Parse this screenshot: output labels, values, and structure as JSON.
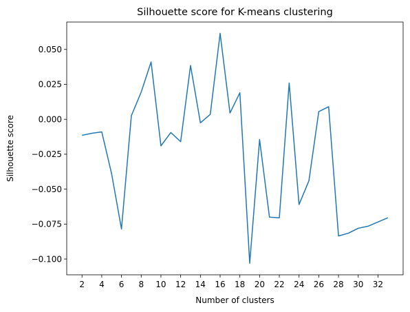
{
  "chart_data": {
    "type": "line",
    "title": "Silhouette score for K-means clustering",
    "xlabel": "Number of clusters",
    "ylabel": "Silhouette score",
    "xlim": [
      0.45,
      34.55
    ],
    "ylim": [
      -0.1113,
      0.0696
    ],
    "grid": false,
    "legend": "none",
    "x_ticks": [
      2,
      4,
      6,
      8,
      10,
      12,
      14,
      16,
      18,
      20,
      22,
      24,
      26,
      28,
      30,
      32
    ],
    "x_tick_labels": [
      "2",
      "4",
      "6",
      "8",
      "10",
      "12",
      "14",
      "16",
      "18",
      "20",
      "22",
      "24",
      "26",
      "28",
      "30",
      "32"
    ],
    "y_ticks": [
      -0.1,
      -0.075,
      -0.05,
      -0.025,
      0.0,
      0.025,
      0.05
    ],
    "y_tick_labels": [
      "−0.100",
      "−0.075",
      "−0.050",
      "−0.025",
      "0.000",
      "0.025",
      "0.050"
    ],
    "series": [
      {
        "color": "#1f77b4",
        "x": [
          2,
          3,
          4,
          5,
          6,
          7,
          8,
          9,
          10,
          11,
          12,
          13,
          14,
          15,
          16,
          17,
          18,
          19,
          20,
          21,
          22,
          23,
          24,
          25,
          26,
          27,
          28,
          29,
          30,
          31,
          32,
          33
        ],
        "y": [
          -0.0115,
          -0.01,
          -0.009,
          -0.039,
          -0.0785,
          0.0025,
          0.0195,
          0.041,
          -0.019,
          -0.0095,
          -0.016,
          0.0385,
          -0.0025,
          0.0035,
          0.0615,
          0.0045,
          0.019,
          -0.103,
          -0.0145,
          -0.07,
          -0.0705,
          0.026,
          -0.061,
          -0.044,
          0.0055,
          0.009,
          -0.0835,
          -0.0815,
          -0.078,
          -0.0765,
          -0.0735,
          -0.0705
        ]
      }
    ]
  }
}
